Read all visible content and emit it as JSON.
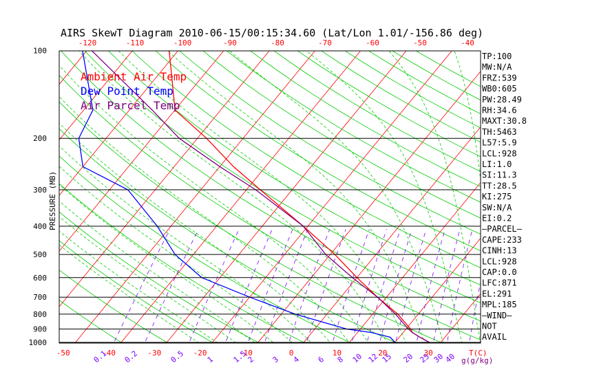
{
  "title": "AIRS SkewT Diagram 2010-06-15/00:15:34.60 (Lat/Lon 1.01/-156.86 deg)",
  "colors": {
    "ambient": "#ff0000",
    "dewpoint": "#0000ff",
    "parcel": "#800080",
    "dry_adiabat": "#00cc00",
    "moist_adiabat": "#00cc00",
    "isotherm": "#ff0000",
    "mixing_ratio": "#7b00ff",
    "isobar": "#000000"
  },
  "legend": [
    "Ambient Air Temp",
    "Dew Point Temp",
    "Air Parcel Temp"
  ],
  "indices": [
    "TP:100",
    "MW:N/A",
    "FRZ:539",
    "WB0:605",
    "PW:28.49",
    "RH:34.6",
    "MAXT:30.8",
    "TH:5463",
    "L57:5.9",
    "LCL:928",
    "LI:1.0",
    "SI:11.3",
    "TT:28.5",
    "KI:275",
    "SW:N/A",
    "EI:0.2",
    "—PARCEL—",
    "CAPE:233",
    "CINH:13",
    "LCL:928",
    "CAP:0.0",
    "LFC:871",
    "EL:291",
    "MPL:185",
    "—WIND—",
    "NOT",
    "AVAIL"
  ],
  "chart_data": {
    "type": "line",
    "title": "AIRS SkewT Diagram 2010-06-15/00:15:34.60 (Lat/Lon 1.01/-156.86 deg)",
    "ylabel": "PRESSURE (MB)",
    "xlabel": "T(C)",
    "mixing_ratio_label": "g(g/kg)",
    "y_scale": "log",
    "y_ticks": [
      100,
      200,
      300,
      400,
      500,
      600,
      700,
      800,
      900,
      1000
    ],
    "x_ticks_bottom": [
      -50,
      -40,
      -30,
      -20,
      -10,
      0,
      10,
      20,
      30
    ],
    "x_ticks_top": [
      -120,
      -110,
      -100,
      -90,
      -80,
      -70,
      -60,
      -50,
      -40
    ],
    "mixing_ratio_ticks": [
      0.1,
      0.2,
      0.5,
      1,
      1.5,
      2,
      3,
      4,
      6,
      8,
      10,
      12,
      15,
      20,
      25,
      30,
      40
    ],
    "series": [
      {
        "name": "Ambient Air Temp",
        "p": [
          1000,
          960,
          925,
          900,
          800,
          700,
          600,
          500,
          400,
          300,
          250,
          200,
          160,
          100
        ],
        "t": [
          27.5,
          24.5,
          22,
          21,
          15.5,
          8,
          0,
          -9,
          -21,
          -37,
          -47,
          -58,
          -70,
          -82
        ]
      },
      {
        "name": "Dew Point Temp",
        "p": [
          1000,
          960,
          925,
          900,
          800,
          700,
          600,
          500,
          400,
          300,
          250,
          200,
          160,
          100
        ],
        "t": [
          20,
          18,
          13,
          7,
          -7,
          -20,
          -34,
          -44,
          -53,
          -66,
          -80,
          -86,
          -88,
          -101
        ]
      },
      {
        "name": "Air Parcel Temp",
        "p": [
          1000,
          960,
          925,
          900,
          800,
          700,
          600,
          500,
          400,
          300,
          250,
          200,
          160,
          100
        ],
        "t": [
          27.5,
          24.5,
          22,
          20.5,
          15,
          8,
          -1,
          -11,
          -21,
          -38,
          -50,
          -64,
          -75,
          -99
        ]
      }
    ]
  }
}
